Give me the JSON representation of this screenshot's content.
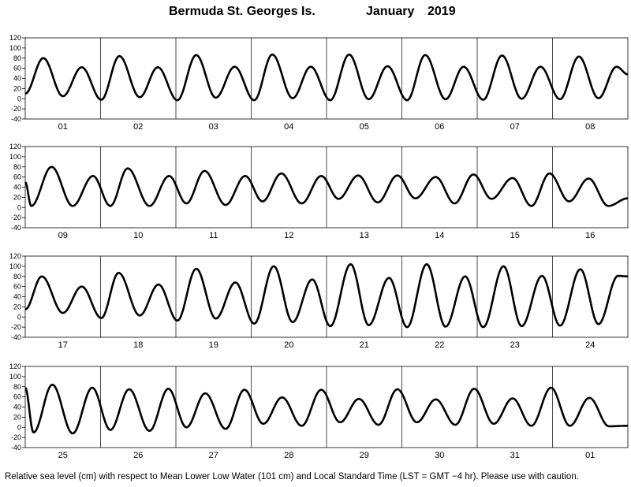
{
  "title": {
    "station": "Bermuda St. Georges Is.",
    "month": "January",
    "year": "2019"
  },
  "footnote": "Relative sea level (cm) with respect to Mean Lower Low Water (101 cm) and Local Standard Time (LST = GMT −4 hr). Please use with caution.",
  "chart_data": {
    "type": "line",
    "title": "Bermuda St. Georges Is. January 2019",
    "xlabel": "",
    "ylabel": "",
    "ylim": [
      -40,
      120
    ],
    "yticks": [
      120,
      100,
      80,
      60,
      40,
      20,
      0,
      -20,
      -40
    ],
    "grid": "vertical day separators",
    "panels": [
      {
        "days": [
          "01",
          "02",
          "03",
          "04",
          "05",
          "06",
          "07",
          "08"
        ],
        "highs": [
          [
            0.24,
            80
          ],
          [
            0.75,
            62
          ],
          [
            1.25,
            84
          ],
          [
            1.76,
            62
          ],
          [
            2.27,
            86
          ],
          [
            2.78,
            63
          ],
          [
            3.28,
            87
          ],
          [
            3.79,
            63
          ],
          [
            4.3,
            87
          ],
          [
            4.81,
            64
          ],
          [
            5.31,
            86
          ],
          [
            5.82,
            63
          ],
          [
            6.33,
            85
          ],
          [
            6.84,
            63
          ],
          [
            7.35,
            83
          ],
          [
            7.85,
            63
          ]
        ],
        "lows": [
          [
            0.5,
            5
          ],
          [
            1.01,
            -2
          ],
          [
            1.52,
            3
          ],
          [
            2.02,
            -3
          ],
          [
            2.53,
            2
          ],
          [
            3.04,
            -3
          ],
          [
            3.55,
            1
          ],
          [
            4.05,
            -3
          ],
          [
            4.56,
            -1
          ],
          [
            5.07,
            -3
          ],
          [
            5.58,
            -1
          ],
          [
            6.08,
            -2
          ],
          [
            6.59,
            0
          ],
          [
            7.1,
            -1
          ],
          [
            7.61,
            1
          ]
        ],
        "start": 10,
        "end": 48
      },
      {
        "days": [
          "09",
          "10",
          "11",
          "12",
          "13",
          "14",
          "15",
          "16"
        ],
        "highs": [
          [
            0.35,
            80
          ],
          [
            0.9,
            62
          ],
          [
            1.36,
            77
          ],
          [
            1.91,
            62
          ],
          [
            2.38,
            72
          ],
          [
            2.92,
            62
          ],
          [
            3.4,
            67
          ],
          [
            3.93,
            62
          ],
          [
            4.42,
            63
          ],
          [
            4.94,
            63
          ],
          [
            5.45,
            60
          ],
          [
            5.95,
            65
          ],
          [
            6.47,
            58
          ],
          [
            6.96,
            67
          ],
          [
            7.48,
            57
          ]
        ],
        "lows": [
          [
            0.08,
            3
          ],
          [
            0.63,
            3
          ],
          [
            1.13,
            3
          ],
          [
            1.65,
            3
          ],
          [
            2.14,
            8
          ],
          [
            2.66,
            5
          ],
          [
            3.15,
            12
          ],
          [
            3.67,
            8
          ],
          [
            4.16,
            17
          ],
          [
            4.68,
            10
          ],
          [
            5.18,
            18
          ],
          [
            5.7,
            8
          ],
          [
            6.19,
            17
          ],
          [
            6.72,
            3
          ],
          [
            7.22,
            12
          ],
          [
            7.74,
            3
          ]
        ],
        "start": 50,
        "end": 18
      },
      {
        "days": [
          "17",
          "18",
          "19",
          "20",
          "21",
          "22",
          "23",
          "24"
        ],
        "highs": [
          [
            0.22,
            80
          ],
          [
            0.75,
            60
          ],
          [
            1.24,
            87
          ],
          [
            1.77,
            64
          ],
          [
            2.27,
            95
          ],
          [
            2.79,
            68
          ],
          [
            3.3,
            100
          ],
          [
            3.81,
            74
          ],
          [
            4.32,
            104
          ],
          [
            4.83,
            77
          ],
          [
            5.33,
            104
          ],
          [
            5.84,
            80
          ],
          [
            6.35,
            100
          ],
          [
            6.86,
            81
          ],
          [
            7.37,
            94
          ],
          [
            7.87,
            81
          ]
        ],
        "lows": [
          [
            0.5,
            8
          ],
          [
            1.01,
            -2
          ],
          [
            1.52,
            3
          ],
          [
            2.02,
            -7
          ],
          [
            2.53,
            -3
          ],
          [
            3.04,
            -13
          ],
          [
            3.55,
            -10
          ],
          [
            4.05,
            -18
          ],
          [
            4.56,
            -16
          ],
          [
            5.07,
            -20
          ],
          [
            5.58,
            -19
          ],
          [
            6.08,
            -20
          ],
          [
            6.59,
            -18
          ],
          [
            7.1,
            -17
          ],
          [
            7.61,
            -14
          ]
        ],
        "start": 15,
        "end": 80
      },
      {
        "days": [
          "25",
          "26",
          "27",
          "28",
          "29",
          "30",
          "31",
          "01"
        ],
        "highs": [
          [
            0.36,
            84
          ],
          [
            0.89,
            78
          ],
          [
            1.38,
            75
          ],
          [
            1.9,
            76
          ],
          [
            2.39,
            67
          ],
          [
            2.91,
            74
          ],
          [
            3.41,
            59
          ],
          [
            3.93,
            74
          ],
          [
            4.43,
            56
          ],
          [
            4.94,
            75
          ],
          [
            5.45,
            55
          ],
          [
            5.96,
            76
          ],
          [
            6.47,
            57
          ],
          [
            6.98,
            78
          ],
          [
            7.49,
            58
          ]
        ],
        "lows": [
          [
            0.11,
            -10
          ],
          [
            0.63,
            -12
          ],
          [
            1.13,
            -5
          ],
          [
            1.65,
            -7
          ],
          [
            2.14,
            0
          ],
          [
            2.66,
            -3
          ],
          [
            3.16,
            7
          ],
          [
            3.67,
            3
          ],
          [
            4.18,
            10
          ],
          [
            4.69,
            5
          ],
          [
            5.2,
            10
          ],
          [
            5.71,
            5
          ],
          [
            6.22,
            7
          ],
          [
            6.72,
            3
          ],
          [
            7.23,
            3
          ],
          [
            7.75,
            2
          ]
        ],
        "start": 78,
        "end": 3
      }
    ]
  }
}
